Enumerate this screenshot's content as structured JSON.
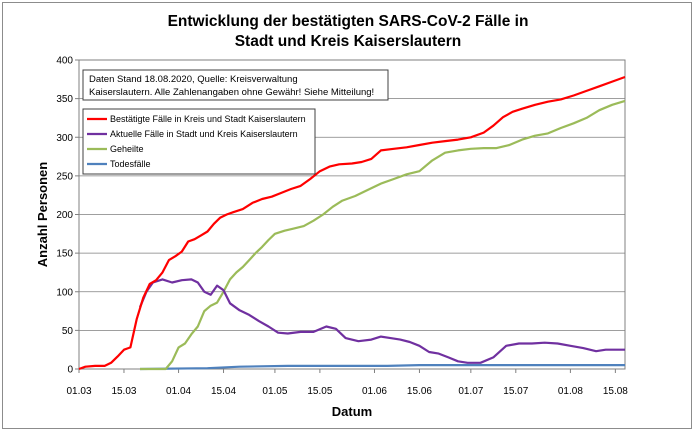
{
  "chart_data": {
    "type": "line",
    "title_line1": "Entwicklung der bestätigten SARS-CoV-2 Fälle in",
    "title_line2": "Stadt und Kreis Kaiserslautern",
    "xlabel": "Datum",
    "ylabel": "Anzahl Personen",
    "ylim": [
      0,
      400
    ],
    "yticks": [
      0,
      50,
      100,
      150,
      200,
      250,
      300,
      350,
      400
    ],
    "xlim": [
      "2020-03-01",
      "2020-08-18"
    ],
    "xticks": [
      {
        "date": "2020-03-01",
        "label": "01.03"
      },
      {
        "date": "2020-03-15",
        "label": "15.03"
      },
      {
        "date": "2020-04-01",
        "label": "01.04"
      },
      {
        "date": "2020-04-15",
        "label": "15.04"
      },
      {
        "date": "2020-05-01",
        "label": "01.05"
      },
      {
        "date": "2020-05-15",
        "label": "15.05"
      },
      {
        "date": "2020-06-01",
        "label": "01.06"
      },
      {
        "date": "2020-06-15",
        "label": "15.06"
      },
      {
        "date": "2020-07-01",
        "label": "01.07"
      },
      {
        "date": "2020-07-15",
        "label": "15.07"
      },
      {
        "date": "2020-08-01",
        "label": "01.08"
      },
      {
        "date": "2020-08-15",
        "label": "15.08"
      }
    ],
    "grid": "horizontal",
    "legend_position": "top-left",
    "note_line1": "Daten Stand 18.08.2020, Quelle: Kreisverwaltung",
    "note_line2": "Kaiserslautern. Alle Zahlenangaben ohne Gewähr! Siehe Mitteilung!",
    "series": [
      {
        "name": "Bestätigte Fälle in Kreis und Stadt Kaiserslautern",
        "color": "#ff0000",
        "points": [
          [
            "2020-03-01",
            0
          ],
          [
            "2020-03-03",
            3
          ],
          [
            "2020-03-06",
            4
          ],
          [
            "2020-03-09",
            4
          ],
          [
            "2020-03-11",
            8
          ],
          [
            "2020-03-13",
            16
          ],
          [
            "2020-03-15",
            25
          ],
          [
            "2020-03-17",
            28
          ],
          [
            "2020-03-19",
            65
          ],
          [
            "2020-03-21",
            92
          ],
          [
            "2020-03-23",
            110
          ],
          [
            "2020-03-25",
            115
          ],
          [
            "2020-03-27",
            125
          ],
          [
            "2020-03-29",
            141
          ],
          [
            "2020-03-31",
            146
          ],
          [
            "2020-04-02",
            152
          ],
          [
            "2020-04-04",
            165
          ],
          [
            "2020-04-06",
            168
          ],
          [
            "2020-04-08",
            173
          ],
          [
            "2020-04-10",
            178
          ],
          [
            "2020-04-12",
            188
          ],
          [
            "2020-04-14",
            196
          ],
          [
            "2020-04-16",
            200
          ],
          [
            "2020-04-18",
            203
          ],
          [
            "2020-04-21",
            207
          ],
          [
            "2020-04-24",
            215
          ],
          [
            "2020-04-27",
            220
          ],
          [
            "2020-04-30",
            223
          ],
          [
            "2020-05-03",
            228
          ],
          [
            "2020-05-06",
            233
          ],
          [
            "2020-05-09",
            237
          ],
          [
            "2020-05-12",
            246
          ],
          [
            "2020-05-15",
            256
          ],
          [
            "2020-05-18",
            262
          ],
          [
            "2020-05-21",
            265
          ],
          [
            "2020-05-25",
            266
          ],
          [
            "2020-05-28",
            268
          ],
          [
            "2020-05-31",
            272
          ],
          [
            "2020-06-03",
            283
          ],
          [
            "2020-06-07",
            285
          ],
          [
            "2020-06-11",
            287
          ],
          [
            "2020-06-15",
            290
          ],
          [
            "2020-06-19",
            293
          ],
          [
            "2020-06-23",
            295
          ],
          [
            "2020-06-27",
            297
          ],
          [
            "2020-07-01",
            300
          ],
          [
            "2020-07-05",
            306
          ],
          [
            "2020-07-08",
            315
          ],
          [
            "2020-07-11",
            326
          ],
          [
            "2020-07-14",
            333
          ],
          [
            "2020-07-17",
            337
          ],
          [
            "2020-07-21",
            342
          ],
          [
            "2020-07-25",
            346
          ],
          [
            "2020-07-29",
            349
          ],
          [
            "2020-08-02",
            354
          ],
          [
            "2020-08-06",
            360
          ],
          [
            "2020-08-10",
            366
          ],
          [
            "2020-08-14",
            372
          ],
          [
            "2020-08-18",
            378
          ]
        ]
      },
      {
        "name": "Aktuelle Fälle in Stadt und Kreis Kaiserslautern",
        "color": "#7030a0",
        "points": [
          [
            "2020-03-20",
            80
          ],
          [
            "2020-03-22",
            100
          ],
          [
            "2020-03-24",
            112
          ],
          [
            "2020-03-27",
            116
          ],
          [
            "2020-03-30",
            112
          ],
          [
            "2020-04-02",
            115
          ],
          [
            "2020-04-05",
            116
          ],
          [
            "2020-04-07",
            112
          ],
          [
            "2020-04-09",
            100
          ],
          [
            "2020-04-11",
            96
          ],
          [
            "2020-04-13",
            108
          ],
          [
            "2020-04-15",
            102
          ],
          [
            "2020-04-17",
            85
          ],
          [
            "2020-04-20",
            76
          ],
          [
            "2020-04-23",
            70
          ],
          [
            "2020-04-26",
            62
          ],
          [
            "2020-04-29",
            55
          ],
          [
            "2020-05-02",
            47
          ],
          [
            "2020-05-05",
            46
          ],
          [
            "2020-05-09",
            48
          ],
          [
            "2020-05-13",
            48
          ],
          [
            "2020-05-17",
            55
          ],
          [
            "2020-05-20",
            52
          ],
          [
            "2020-05-23",
            40
          ],
          [
            "2020-05-27",
            36
          ],
          [
            "2020-05-31",
            38
          ],
          [
            "2020-06-03",
            42
          ],
          [
            "2020-06-06",
            40
          ],
          [
            "2020-06-09",
            38
          ],
          [
            "2020-06-12",
            35
          ],
          [
            "2020-06-15",
            30
          ],
          [
            "2020-06-18",
            22
          ],
          [
            "2020-06-21",
            20
          ],
          [
            "2020-06-24",
            15
          ],
          [
            "2020-06-27",
            10
          ],
          [
            "2020-06-30",
            8
          ],
          [
            "2020-07-04",
            8
          ],
          [
            "2020-07-08",
            15
          ],
          [
            "2020-07-12",
            30
          ],
          [
            "2020-07-16",
            33
          ],
          [
            "2020-07-20",
            33
          ],
          [
            "2020-07-24",
            34
          ],
          [
            "2020-07-28",
            33
          ],
          [
            "2020-08-01",
            30
          ],
          [
            "2020-08-05",
            27
          ],
          [
            "2020-08-09",
            23
          ],
          [
            "2020-08-12",
            25
          ],
          [
            "2020-08-15",
            25
          ],
          [
            "2020-08-18",
            25
          ]
        ]
      },
      {
        "name": "Geheilte",
        "color": "#9bbb59",
        "points": [
          [
            "2020-03-20",
            0
          ],
          [
            "2020-03-28",
            0
          ],
          [
            "2020-03-30",
            10
          ],
          [
            "2020-04-01",
            28
          ],
          [
            "2020-04-03",
            33
          ],
          [
            "2020-04-05",
            45
          ],
          [
            "2020-04-07",
            55
          ],
          [
            "2020-04-09",
            75
          ],
          [
            "2020-04-11",
            82
          ],
          [
            "2020-04-13",
            86
          ],
          [
            "2020-04-15",
            100
          ],
          [
            "2020-04-17",
            116
          ],
          [
            "2020-04-19",
            125
          ],
          [
            "2020-04-21",
            132
          ],
          [
            "2020-04-23",
            141
          ],
          [
            "2020-04-25",
            150
          ],
          [
            "2020-04-27",
            158
          ],
          [
            "2020-04-29",
            167
          ],
          [
            "2020-05-01",
            175
          ],
          [
            "2020-05-04",
            179
          ],
          [
            "2020-05-07",
            182
          ],
          [
            "2020-05-10",
            185
          ],
          [
            "2020-05-13",
            192
          ],
          [
            "2020-05-16",
            200
          ],
          [
            "2020-05-19",
            210
          ],
          [
            "2020-05-22",
            218
          ],
          [
            "2020-05-26",
            224
          ],
          [
            "2020-05-30",
            232
          ],
          [
            "2020-06-03",
            240
          ],
          [
            "2020-06-07",
            246
          ],
          [
            "2020-06-11",
            252
          ],
          [
            "2020-06-15",
            256
          ],
          [
            "2020-06-19",
            270
          ],
          [
            "2020-06-23",
            280
          ],
          [
            "2020-06-27",
            283
          ],
          [
            "2020-07-01",
            285
          ],
          [
            "2020-07-05",
            286
          ],
          [
            "2020-07-09",
            286
          ],
          [
            "2020-07-13",
            290
          ],
          [
            "2020-07-17",
            297
          ],
          [
            "2020-07-21",
            302
          ],
          [
            "2020-07-25",
            305
          ],
          [
            "2020-07-29",
            312
          ],
          [
            "2020-08-02",
            318
          ],
          [
            "2020-08-06",
            325
          ],
          [
            "2020-08-10",
            335
          ],
          [
            "2020-08-14",
            342
          ],
          [
            "2020-08-18",
            347
          ]
        ]
      },
      {
        "name": "Todesfälle",
        "color": "#4f81bd",
        "points": [
          [
            "2020-03-20",
            0
          ],
          [
            "2020-04-10",
            1
          ],
          [
            "2020-04-20",
            3
          ],
          [
            "2020-05-05",
            4
          ],
          [
            "2020-05-20",
            4
          ],
          [
            "2020-06-05",
            4
          ],
          [
            "2020-06-15",
            5
          ],
          [
            "2020-07-01",
            5
          ],
          [
            "2020-07-15",
            5
          ],
          [
            "2020-08-01",
            5
          ],
          [
            "2020-08-18",
            5
          ]
        ]
      }
    ]
  }
}
